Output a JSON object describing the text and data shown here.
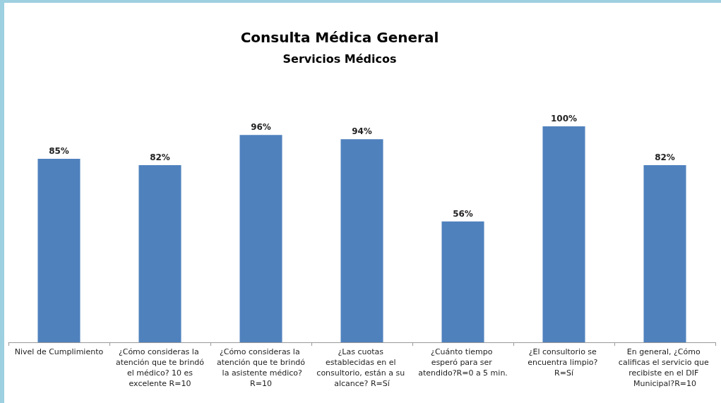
{
  "chart_data": {
    "type": "bar",
    "title": "Consulta Médica General",
    "subtitle": "Servicios Médicos",
    "categories": [
      "Nivel de Cumplimiento",
      "¿Cómo consideras la atención que te brindó el médico? 10 es excelente R=10",
      "¿Cómo consideras la atención que te brindó la asistente médico?R=10",
      "¿Las cuotas establecidas en el consultorio, están a su alcance? R=Sí",
      "¿Cuánto tiempo esperó para ser atendido?R=0 a 5 min.",
      "¿El consultorio se encuentra limpio? R=Sí",
      "En general, ¿Cómo calificas el servicio que recibiste en el DIF Municipal?R=10"
    ],
    "values": [
      85,
      82,
      96,
      94,
      56,
      100,
      82
    ],
    "value_labels": [
      "85%",
      "82%",
      "96%",
      "94%",
      "56%",
      "100%",
      "82%"
    ],
    "color": "#4f81bd"
  }
}
